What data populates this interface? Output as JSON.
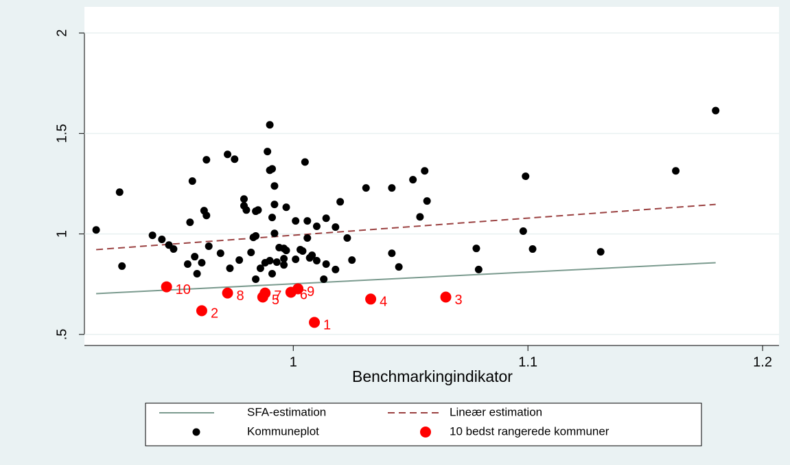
{
  "chart_data": {
    "type": "scatter",
    "xlabel": "Benchmarkingindikator",
    "xlim": [
      0.911,
      1.207
    ],
    "ylim": [
      0.445,
      2.13
    ],
    "xticks": [
      1,
      1.1,
      1.2
    ],
    "yticks": [
      {
        "value": 0.5,
        "label": ".5"
      },
      1,
      1.5,
      2
    ],
    "grid": true,
    "series": [
      {
        "name": "SFA-estimation",
        "kind": "line",
        "color": "#7a9a8e",
        "dash": false,
        "x": [
          0.916,
          1.18
        ],
        "y": [
          0.703,
          0.857
        ]
      },
      {
        "name": "Lineær estimation",
        "kind": "line",
        "color": "#9a4040",
        "dash": true,
        "x": [
          0.916,
          1.18
        ],
        "y": [
          0.922,
          1.147
        ]
      },
      {
        "name": "Kommuneplot",
        "kind": "scatter",
        "color": "#000000",
        "x": [
          0.916,
          0.926,
          0.927,
          0.94,
          0.944,
          0.947,
          0.949,
          0.955,
          0.956,
          0.957,
          0.958,
          0.959,
          0.961,
          0.962,
          0.963,
          0.963,
          0.964,
          0.969,
          0.972,
          0.973,
          0.975,
          0.977,
          0.979,
          0.979,
          0.98,
          0.982,
          0.983,
          0.984,
          0.984,
          0.984,
          0.985,
          0.988,
          0.99,
          0.989,
          0.99,
          0.991,
          0.99,
          0.991,
          0.991,
          0.992,
          0.992,
          0.992,
          0.993,
          0.994,
          0.996,
          0.996,
          0.997,
          0.997,
          1.001,
          1.001,
          1.003,
          1.004,
          1.005,
          1.006,
          1.006,
          1.007,
          1.008,
          1.01,
          1.013,
          1.014,
          1.014,
          1.018,
          1.018,
          1.02,
          1.023,
          1.025,
          1.031,
          1.042,
          1.042,
          1.045,
          1.051,
          1.054,
          1.056,
          1.057,
          1.078,
          1.079,
          1.098,
          1.099,
          1.102,
          1.131,
          1.163,
          1.18,
          1.01,
          0.996,
          0.986
        ],
        "y": [
          1.02,
          1.208,
          0.84,
          0.993,
          0.973,
          0.945,
          0.925,
          0.85,
          1.058,
          1.263,
          0.887,
          0.802,
          0.857,
          1.116,
          1.092,
          1.369,
          0.939,
          0.904,
          1.396,
          0.829,
          1.372,
          0.87,
          1.174,
          1.14,
          1.119,
          0.908,
          0.983,
          0.99,
          1.113,
          0.775,
          1.119,
          0.857,
          1.543,
          1.41,
          1.317,
          1.082,
          0.867,
          0.802,
          1.324,
          1.147,
          1.003,
          1.239,
          0.86,
          0.932,
          0.928,
          0.846,
          1.133,
          0.918,
          1.065,
          0.874,
          0.922,
          0.915,
          1.358,
          1.065,
          0.98,
          0.881,
          0.894,
          0.867,
          0.775,
          1.078,
          0.85,
          0.823,
          1.034,
          1.16,
          0.98,
          0.87,
          1.229,
          1.229,
          0.904,
          0.836,
          1.27,
          1.085,
          1.314,
          1.164,
          0.928,
          0.823,
          1.014,
          1.287,
          0.925,
          0.911,
          1.314,
          1.614,
          1.038,
          0.877,
          0.829
        ]
      },
      {
        "name": "10 bedst rangerede kommuner",
        "kind": "scatter",
        "color": "#ff0000",
        "x": [
          1.009,
          0.961,
          1.065,
          1.033,
          0.987,
          0.999,
          0.988,
          0.972,
          1.002,
          0.946
        ],
        "y": [
          0.56,
          0.618,
          0.686,
          0.676,
          0.686,
          0.71,
          0.706,
          0.706,
          0.727,
          0.737
        ],
        "labels": [
          "1",
          "2",
          "3",
          "4",
          "5",
          "6",
          "7",
          "8",
          "9",
          "10"
        ]
      }
    ]
  }
}
